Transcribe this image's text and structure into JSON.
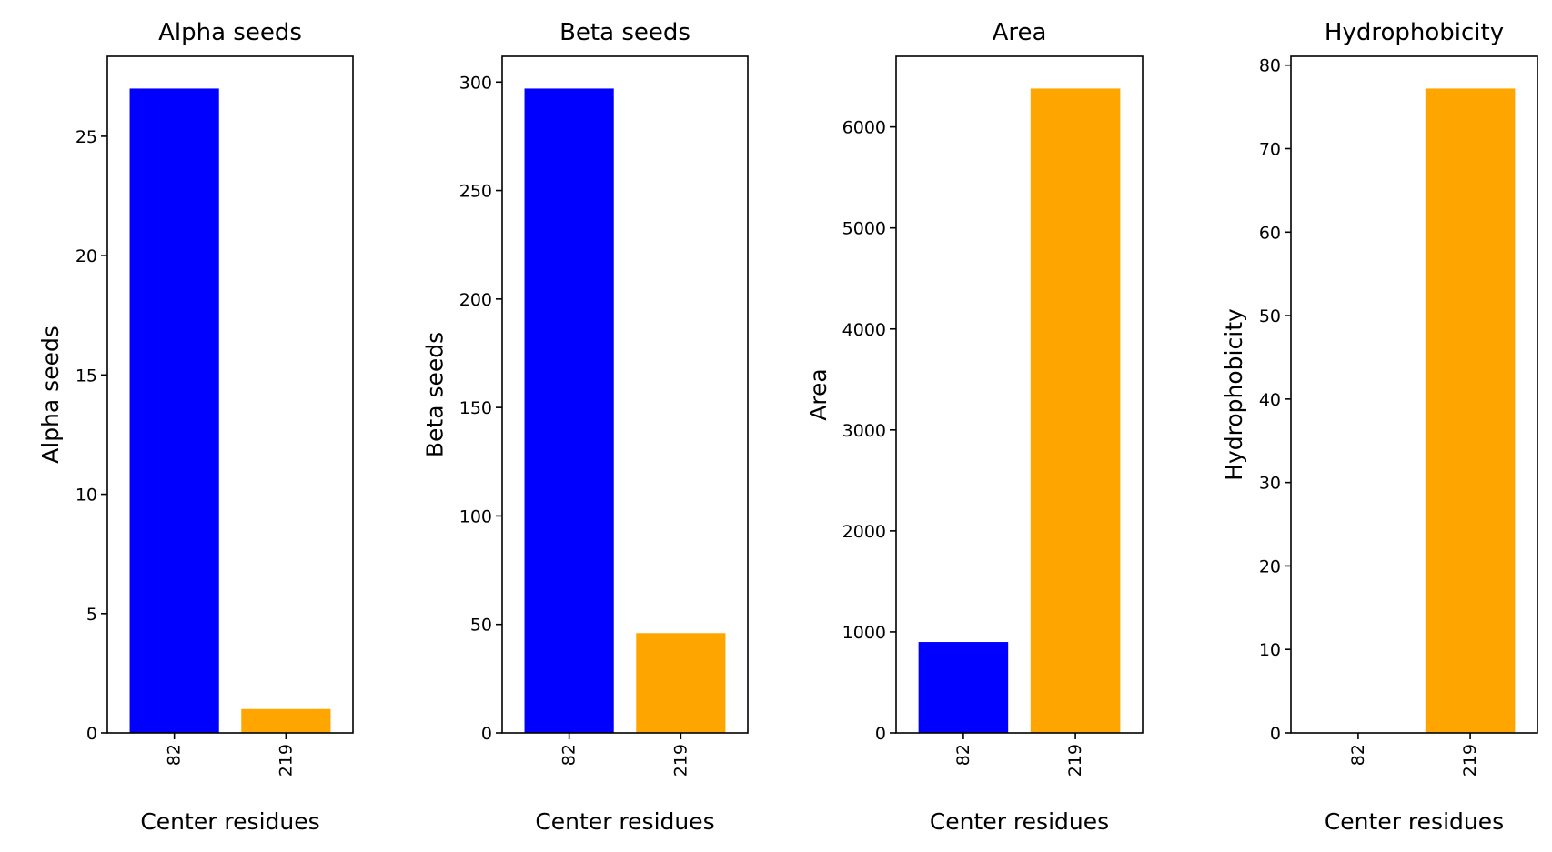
{
  "chart_data": [
    {
      "type": "bar",
      "title": "Alpha seeds",
      "xlabel": "Center residues",
      "ylabel": "Alpha seeds",
      "categories": [
        "82",
        "219"
      ],
      "values": [
        27,
        1
      ],
      "colors": [
        "#0000ff",
        "#ffa500"
      ],
      "ylim": [
        0,
        28.35
      ],
      "yticks": [
        0,
        5,
        10,
        15,
        20,
        25
      ],
      "grid": false,
      "legend": "none"
    },
    {
      "type": "bar",
      "title": "Beta seeds",
      "xlabel": "Center residues",
      "ylabel": "Beta seeds",
      "categories": [
        "82",
        "219"
      ],
      "values": [
        297,
        46
      ],
      "colors": [
        "#0000ff",
        "#ffa500"
      ],
      "ylim": [
        0,
        311.85
      ],
      "yticks": [
        0,
        50,
        100,
        150,
        200,
        250,
        300
      ],
      "grid": false,
      "legend": "none"
    },
    {
      "type": "bar",
      "title": "Area",
      "xlabel": "Center residues",
      "ylabel": "Area",
      "categories": [
        "82",
        "219"
      ],
      "values": [
        900,
        6380
      ],
      "colors": [
        "#0000ff",
        "#ffa500"
      ],
      "ylim": [
        0,
        6699
      ],
      "yticks": [
        0,
        1000,
        2000,
        3000,
        4000,
        5000,
        6000
      ],
      "grid": false,
      "legend": "none"
    },
    {
      "type": "bar",
      "title": "Hydrophobicity",
      "xlabel": "Center residues",
      "ylabel": "Hydrophobicity",
      "categories": [
        "82",
        "219"
      ],
      "values": [
        0,
        77.2
      ],
      "colors": [
        "#0000ff",
        "#ffa500"
      ],
      "ylim": [
        0,
        81.06
      ],
      "yticks": [
        0,
        10,
        20,
        30,
        40,
        50,
        60,
        70,
        80
      ],
      "grid": false,
      "legend": "none"
    }
  ]
}
